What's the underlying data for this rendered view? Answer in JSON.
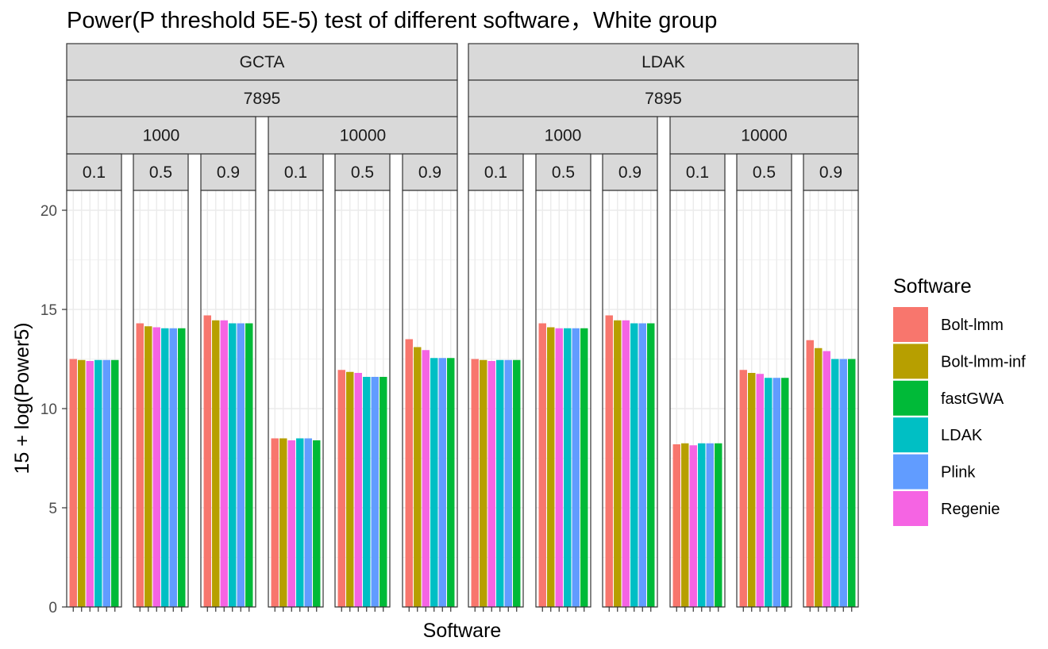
{
  "chart_data": {
    "type": "bar",
    "title": "Power(P threshold 5E-5) test of different software，White group",
    "xlabel": "Software",
    "ylabel": "15 + log(Power5)",
    "ylim": [
      0,
      21
    ],
    "yticks": [
      0,
      5,
      10,
      15,
      20
    ],
    "grid": true,
    "legend": {
      "title": "Software",
      "placement": "right",
      "entries": [
        {
          "name": "Bolt-lmm",
          "color": "#F8766D"
        },
        {
          "name": "Bolt-lmm-inf",
          "color": "#B79F00"
        },
        {
          "name": "fastGWA",
          "color": "#00BA38"
        },
        {
          "name": "LDAK",
          "color": "#00BFC4"
        },
        {
          "name": "Plink",
          "color": "#619CFF"
        },
        {
          "name": "Regenie",
          "color": "#F564E3"
        }
      ]
    },
    "bar_order": [
      "Bolt-lmm",
      "Bolt-lmm-inf",
      "Regenie",
      "LDAK",
      "Plink",
      "fastGWA"
    ],
    "facet_groups": [
      {
        "label": "GCTA",
        "sub_label": "7895",
        "subgroups": [
          {
            "label": "1000",
            "panels": [
              {
                "label": "0.1",
                "values": [
                  12.5,
                  12.45,
                  12.4,
                  12.45,
                  12.45,
                  12.45
                ]
              },
              {
                "label": "0.5",
                "values": [
                  14.3,
                  14.15,
                  14.1,
                  14.05,
                  14.05,
                  14.05
                ]
              },
              {
                "label": "0.9",
                "values": [
                  14.7,
                  14.45,
                  14.45,
                  14.3,
                  14.3,
                  14.3
                ]
              }
            ]
          },
          {
            "label": "10000",
            "panels": [
              {
                "label": "0.1",
                "values": [
                  8.5,
                  8.5,
                  8.4,
                  8.5,
                  8.5,
                  8.4
                ]
              },
              {
                "label": "0.5",
                "values": [
                  11.95,
                  11.85,
                  11.8,
                  11.6,
                  11.6,
                  11.6
                ]
              },
              {
                "label": "0.9",
                "values": [
                  13.5,
                  13.1,
                  12.95,
                  12.55,
                  12.55,
                  12.55
                ]
              }
            ]
          }
        ]
      },
      {
        "label": "LDAK",
        "sub_label": "7895",
        "subgroups": [
          {
            "label": "1000",
            "panels": [
              {
                "label": "0.1",
                "values": [
                  12.5,
                  12.45,
                  12.4,
                  12.45,
                  12.45,
                  12.45
                ]
              },
              {
                "label": "0.5",
                "values": [
                  14.3,
                  14.1,
                  14.05,
                  14.05,
                  14.05,
                  14.05
                ]
              },
              {
                "label": "0.9",
                "values": [
                  14.7,
                  14.45,
                  14.45,
                  14.3,
                  14.3,
                  14.3
                ]
              }
            ]
          },
          {
            "label": "10000",
            "panels": [
              {
                "label": "0.1",
                "values": [
                  8.2,
                  8.25,
                  8.15,
                  8.25,
                  8.25,
                  8.25
                ]
              },
              {
                "label": "0.5",
                "values": [
                  11.95,
                  11.8,
                  11.75,
                  11.55,
                  11.55,
                  11.55
                ]
              },
              {
                "label": "0.9",
                "values": [
                  13.45,
                  13.05,
                  12.9,
                  12.5,
                  12.5,
                  12.5
                ]
              }
            ]
          }
        ]
      }
    ]
  }
}
